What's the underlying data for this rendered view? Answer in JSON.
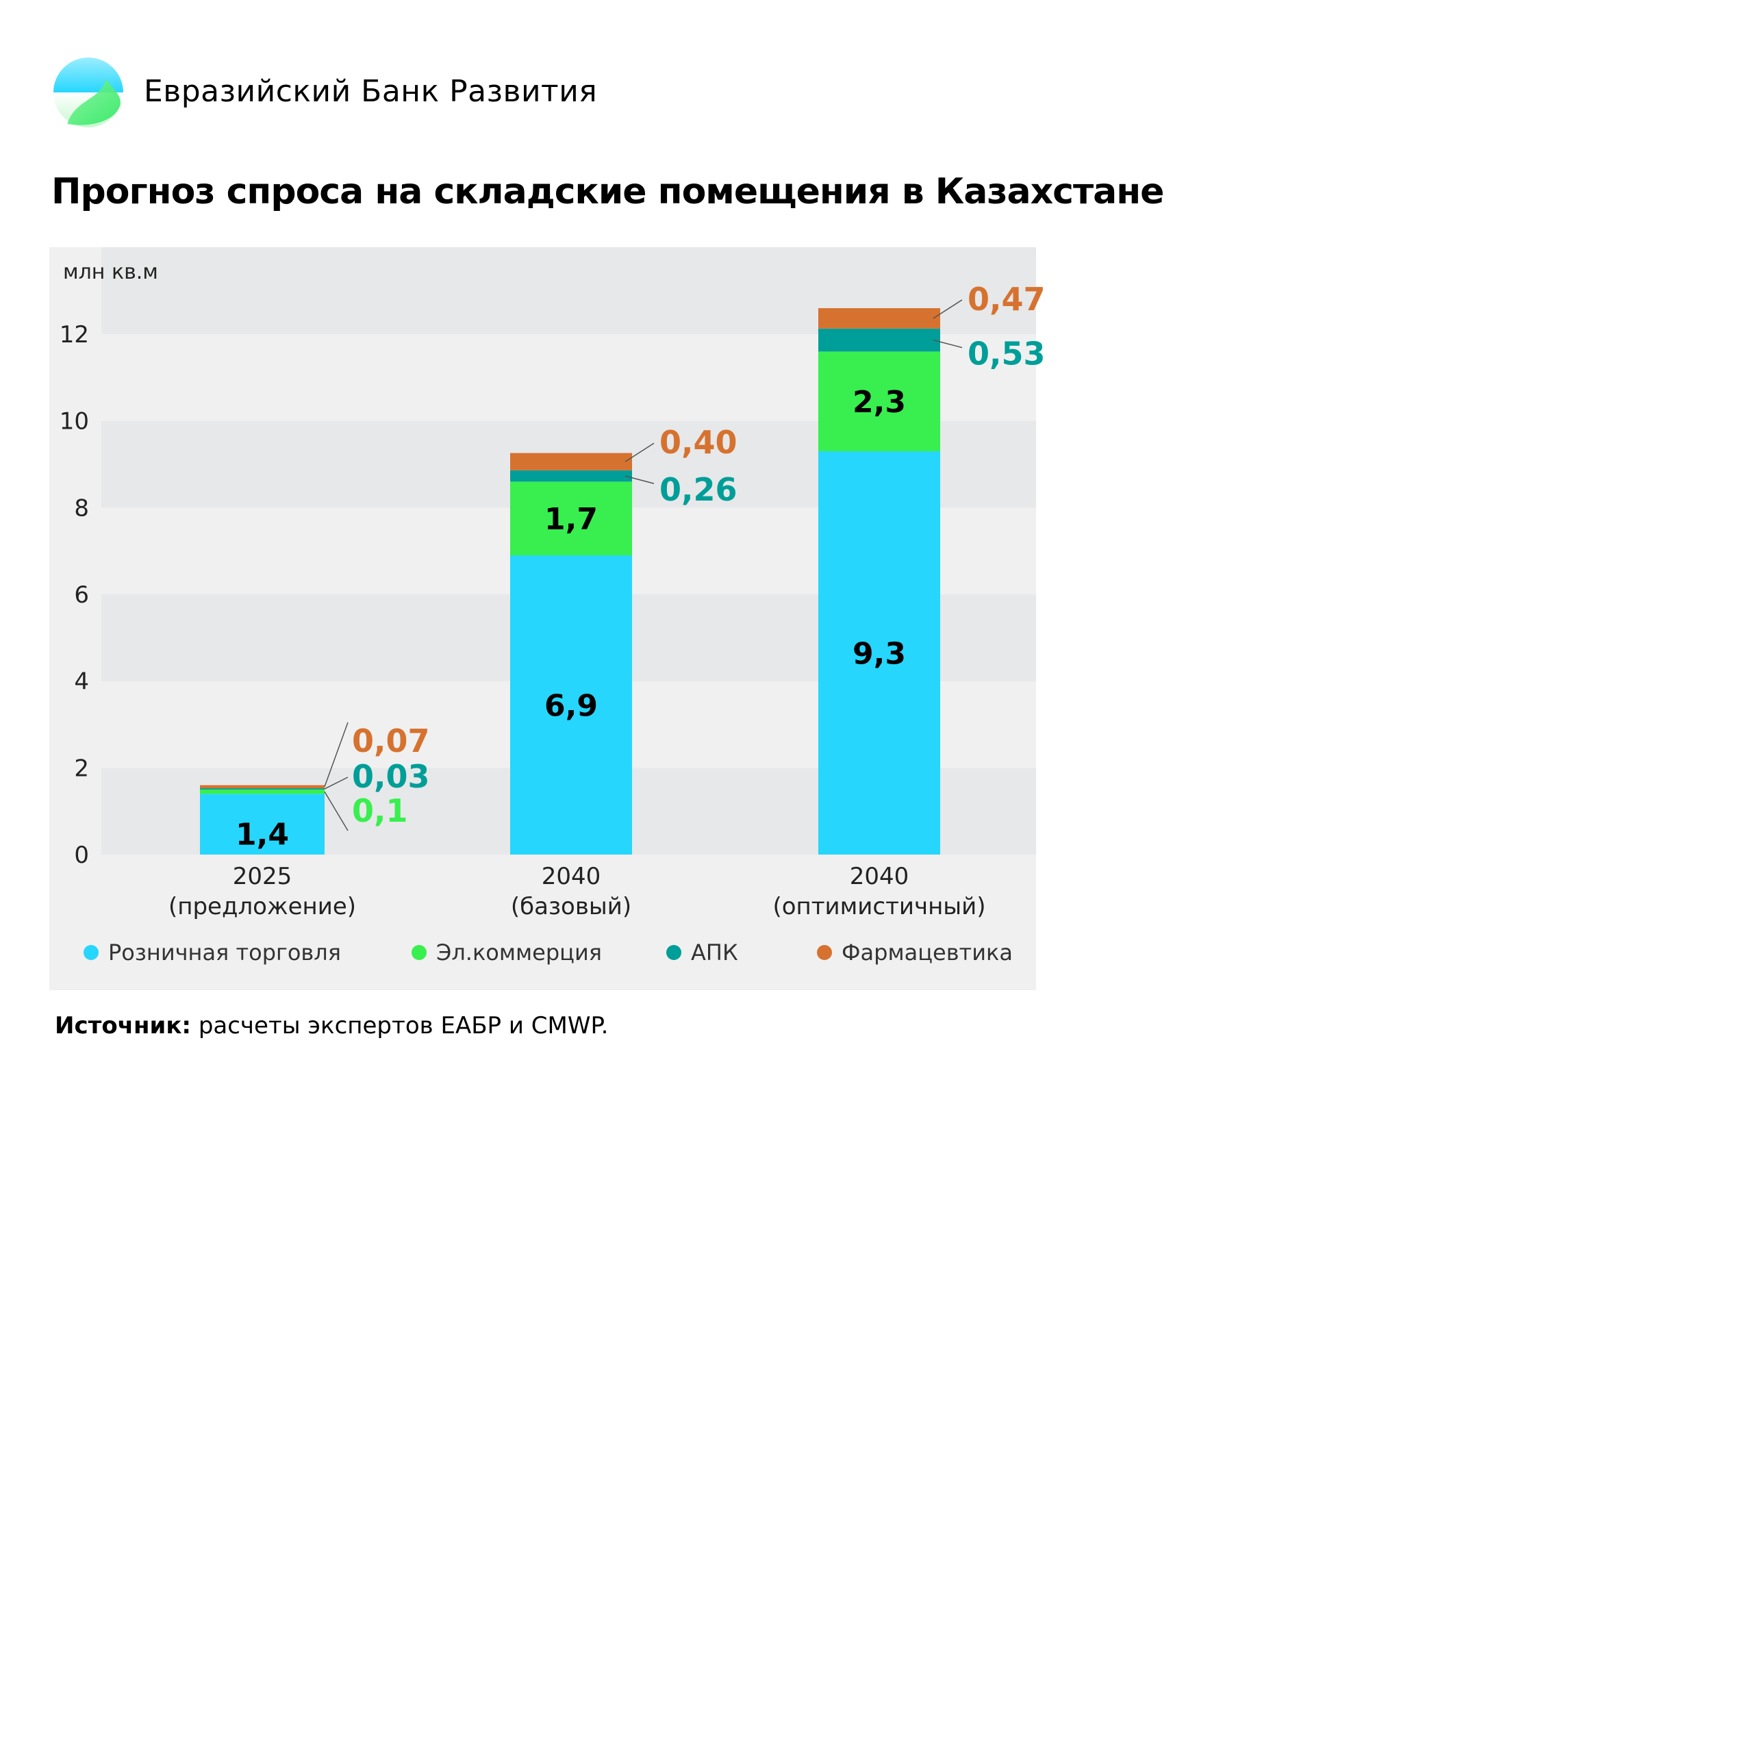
{
  "header": {
    "brand": "Евразийский Банк Развития",
    "logo_text": "Евразийский Банк Развития"
  },
  "title": "Прогноз спроса на складские помещения в Казахстане",
  "source": {
    "label": "Источник:",
    "text": " расчеты экспертов ЕАБР и CMWP."
  },
  "colors": {
    "retail": "#26d6fd",
    "ecom": "#38ef4f",
    "apk": "#009e98",
    "pharma": "#d6722f",
    "band_dark": "#e7e8e9",
    "band_light": "#f0f0f0"
  },
  "chart_data": {
    "type": "bar",
    "stacked": true,
    "ylabel": "млн кв.м",
    "ylim": [
      0,
      13.6
    ],
    "yticks": [
      0,
      2,
      4,
      6,
      8,
      10,
      12
    ],
    "grid": "alternating bands",
    "legend_placement": "bottom",
    "categories": [
      [
        "2025",
        "(предложение)"
      ],
      [
        "2040",
        "(базовый)"
      ],
      [
        "2040",
        "(оптимистичный)"
      ]
    ],
    "series": [
      {
        "name": "Розничная торговля",
        "key": "retail",
        "values": [
          1.4,
          6.9,
          9.3
        ],
        "labels": [
          "1,4",
          "6,9",
          "9,3"
        ]
      },
      {
        "name": "Эл.коммерция",
        "key": "ecom",
        "values": [
          0.1,
          1.7,
          2.3
        ],
        "labels": [
          "0,1",
          "1,7",
          "2,3"
        ]
      },
      {
        "name": "АПК",
        "key": "apk",
        "values": [
          0.03,
          0.26,
          0.53
        ],
        "labels": [
          "0,03",
          "0,26",
          "0,53"
        ]
      },
      {
        "name": "Фармацевтика",
        "key": "pharma",
        "values": [
          0.07,
          0.4,
          0.47
        ],
        "labels": [
          "0,07",
          "0,40",
          "0,47"
        ]
      }
    ]
  }
}
